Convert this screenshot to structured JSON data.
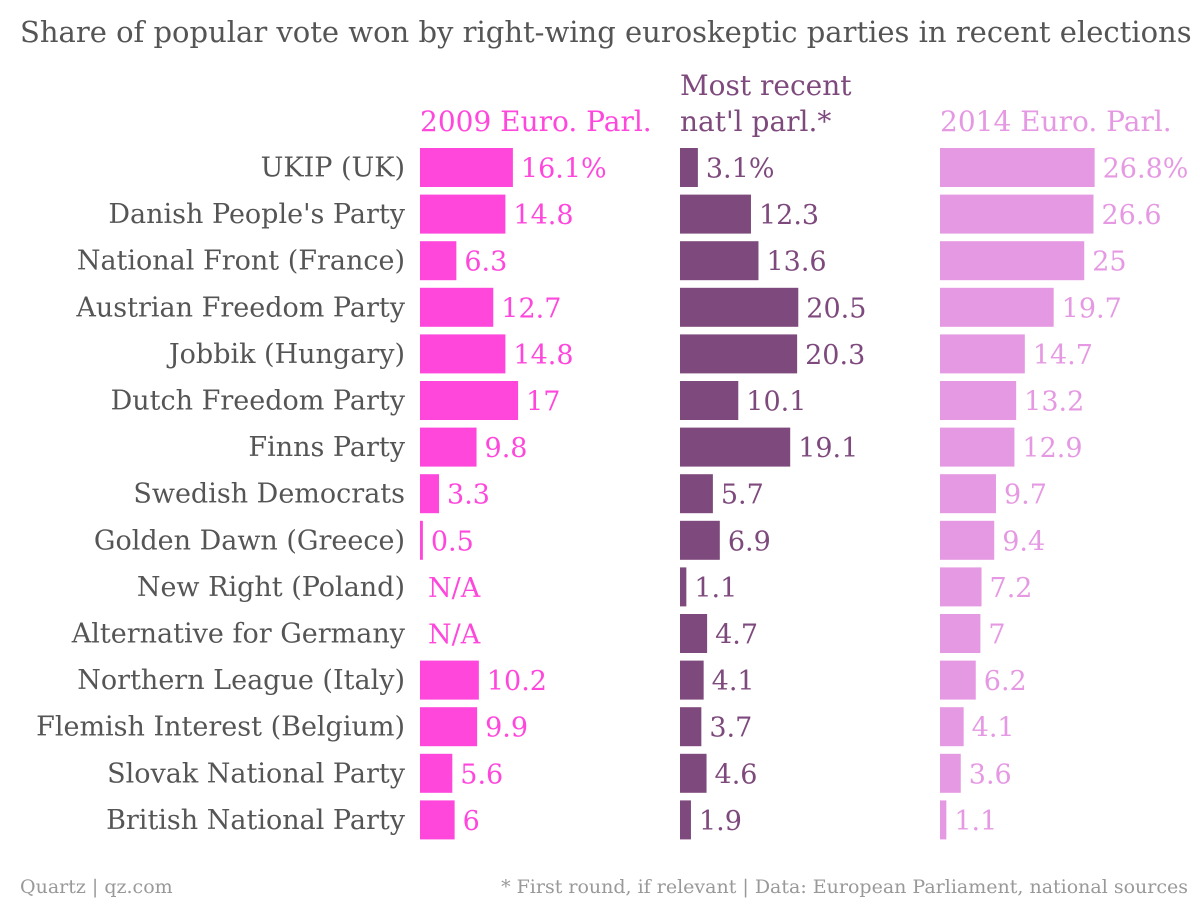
{
  "chart_data": {
    "type": "bar",
    "title": "Share of popular vote won by right-wing euroskeptic parties in recent elections",
    "categories": [
      "UKIP (UK)",
      "Danish People's Party",
      "National Front (France)",
      "Austrian Freedom Party",
      "Jobbik (Hungary)",
      "Dutch Freedom Party",
      "Finns Party",
      "Swedish Democrats",
      "Golden Dawn (Greece)",
      "New Right (Poland)",
      "Alternative for Germany",
      "Northern League (Italy)",
      "Flemish Interest (Belgium)",
      "Slovak National Party",
      "British National Party"
    ],
    "series": [
      {
        "name": "2009 Euro. Parl.",
        "color": "#ff47dc",
        "values": [
          16.1,
          14.8,
          6.3,
          12.7,
          14.8,
          17,
          9.8,
          3.3,
          0.5,
          null,
          null,
          10.2,
          9.9,
          5.6,
          6
        ],
        "labels": [
          "16.1%",
          "14.8",
          "6.3",
          "12.7",
          "14.8",
          "17",
          "9.8",
          "3.3",
          "0.5",
          "N/A",
          "N/A",
          "10.2",
          "9.9",
          "5.6",
          "6"
        ]
      },
      {
        "name": "Most recent nat'l parl.*",
        "name_lines": [
          "Most recent",
          "nat'l parl.*"
        ],
        "color": "#7e4a7d",
        "values": [
          3.1,
          12.3,
          13.6,
          20.5,
          20.3,
          10.1,
          19.1,
          5.7,
          6.9,
          1.1,
          4.7,
          4.1,
          3.7,
          4.6,
          1.9
        ],
        "labels": [
          "3.1%",
          "12.3",
          "13.6",
          "20.5",
          "20.3",
          "10.1",
          "19.1",
          "5.7",
          "6.9",
          "1.1",
          "4.7",
          "4.1",
          "3.7",
          "4.6",
          "1.9"
        ]
      },
      {
        "name": "2014 Euro. Parl.",
        "color": "#e699e3",
        "values": [
          26.8,
          26.6,
          25,
          19.7,
          14.7,
          13.2,
          12.9,
          9.7,
          9.4,
          7.2,
          7,
          6.2,
          4.1,
          3.6,
          1.1
        ],
        "labels": [
          "26.8%",
          "26.6",
          "25",
          "19.7",
          "14.7",
          "13.2",
          "12.9",
          "9.7",
          "9.4",
          "7.2",
          "7",
          "6.2",
          "4.1",
          "3.6",
          "1.1"
        ]
      }
    ]
  },
  "footer": {
    "source_left": "Quartz | qz.com",
    "source_right": "* First round, if relevant | Data: European Parliament, national sources"
  }
}
